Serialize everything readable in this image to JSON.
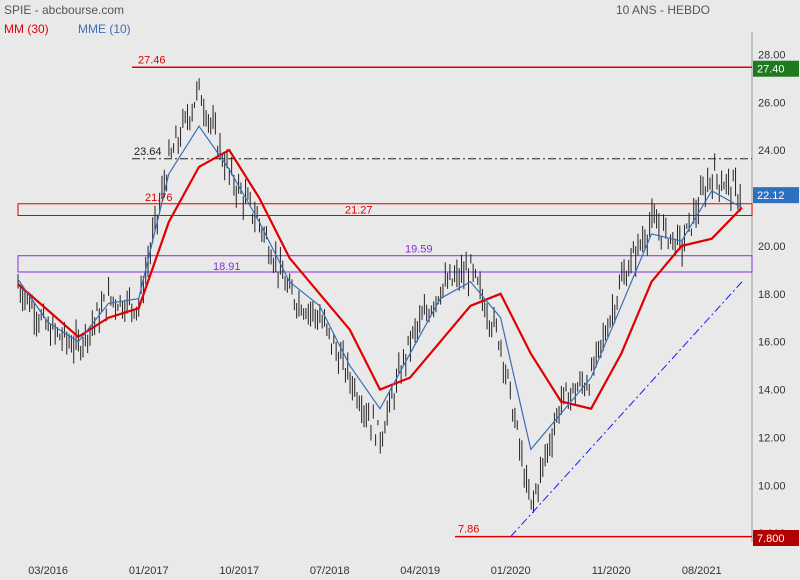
{
  "header": {
    "title": "SPIE - abcbourse.com",
    "period": "10 ANS - HEBDO"
  },
  "legend": {
    "ma_label": "MM (30)",
    "ema_label": "MME (10)"
  },
  "colors": {
    "background": "#e9e9e9",
    "candles": "#222222",
    "ma": "#e00000",
    "ema": "#3a6fb7",
    "support": "#8a2be2",
    "trendline": "#1a1aff",
    "badge_high": "#1e7a1e",
    "badge_last": "#2f6fc0",
    "badge_low": "#b00000"
  },
  "chart_data": {
    "type": "line",
    "title": "SPIE - abcbourse.com",
    "ylim": [
      7.8,
      28.6
    ],
    "y_ticks": [
      "28.00",
      "26.00",
      "24.00",
      "22.00",
      "20.00",
      "18.00",
      "16.00",
      "14.00",
      "12.00",
      "10.00",
      "8.000"
    ],
    "x_ticks": [
      "03/2016",
      "01/2017",
      "10/2017",
      "07/2018",
      "04/2019",
      "01/2020",
      "11/2020",
      "08/2021"
    ],
    "grid": false,
    "legend_position": "top-left",
    "series": [
      {
        "name": "MM (30)",
        "x": [
          "12/2015",
          "03/2016",
          "06/2016",
          "09/2016",
          "12/2016",
          "03/2017",
          "06/2017",
          "09/2017",
          "12/2017",
          "03/2018",
          "06/2018",
          "09/2018",
          "12/2018",
          "03/2019",
          "06/2019",
          "09/2019",
          "12/2019",
          "03/2020",
          "06/2020",
          "09/2020",
          "12/2020",
          "03/2021",
          "06/2021",
          "09/2021",
          "12/2021"
        ],
        "values": [
          18.4,
          17.3,
          16.2,
          17.0,
          17.4,
          21.0,
          23.3,
          24.0,
          22.0,
          19.5,
          18.0,
          16.5,
          14.0,
          14.5,
          16.0,
          17.5,
          18.0,
          15.5,
          13.5,
          13.2,
          15.5,
          18.5,
          20.0,
          20.3,
          21.6
        ]
      },
      {
        "name": "MME (10)",
        "x": [
          "12/2015",
          "03/2016",
          "06/2016",
          "09/2016",
          "12/2016",
          "03/2017",
          "06/2017",
          "09/2017",
          "12/2017",
          "03/2018",
          "06/2018",
          "09/2018",
          "12/2018",
          "03/2019",
          "06/2019",
          "09/2019",
          "12/2019",
          "03/2020",
          "06/2020",
          "09/2020",
          "12/2020",
          "03/2021",
          "06/2021",
          "09/2021",
          "12/2021"
        ],
        "values": [
          18.6,
          16.8,
          16.0,
          17.6,
          17.8,
          23.0,
          25.0,
          23.2,
          21.0,
          18.5,
          17.5,
          15.0,
          13.2,
          15.5,
          17.8,
          18.5,
          17.0,
          11.5,
          13.0,
          14.5,
          17.5,
          20.5,
          20.2,
          22.3,
          21.6
        ]
      }
    ],
    "price_bars": {
      "x": [
        "12/2015",
        "03/2016",
        "06/2016",
        "09/2016",
        "12/2016",
        "03/2017",
        "06/2017",
        "09/2017",
        "12/2017",
        "03/2018",
        "06/2018",
        "09/2018",
        "12/2018",
        "03/2019",
        "06/2019",
        "09/2019",
        "12/2019",
        "03/2020",
        "06/2020",
        "09/2020",
        "12/2020",
        "03/2021",
        "06/2021",
        "09/2021",
        "12/2021"
      ],
      "close": [
        18.4,
        16.5,
        15.8,
        17.8,
        17.5,
        23.5,
        26.5,
        23.0,
        21.0,
        18.0,
        17.0,
        14.5,
        12.0,
        16.0,
        18.2,
        19.0,
        16.0,
        9.0,
        13.5,
        14.5,
        18.5,
        21.0,
        20.0,
        23.0,
        22.12
      ]
    },
    "horizontal_levels": [
      {
        "value": 27.46,
        "label": "27.46",
        "style": "solid",
        "color": "#e00000"
      },
      {
        "value": 23.64,
        "label": "23.64",
        "style": "dashdot",
        "color": "#222222"
      },
      {
        "value": 7.86,
        "label": "7.86",
        "style": "solid",
        "color": "#e00000"
      }
    ],
    "zones": [
      {
        "low": 21.27,
        "high": 21.76,
        "low_label": "21.27",
        "high_label": "21.76",
        "color": "#e00000"
      },
      {
        "low": 18.91,
        "high": 19.59,
        "low_label": "18.91",
        "high_label": "19.59",
        "color": "#8a2be2"
      }
    ],
    "trendline": {
      "from": [
        "01/2020",
        7.86
      ],
      "to": [
        "12/2021",
        18.5
      ],
      "style": "dashdot"
    },
    "badges": [
      {
        "value": 27.4,
        "label": "27.40",
        "kind": "high"
      },
      {
        "value": 22.12,
        "label": "22.12",
        "kind": "last"
      },
      {
        "value": 7.8,
        "label": "7.800",
        "kind": "low"
      }
    ]
  }
}
